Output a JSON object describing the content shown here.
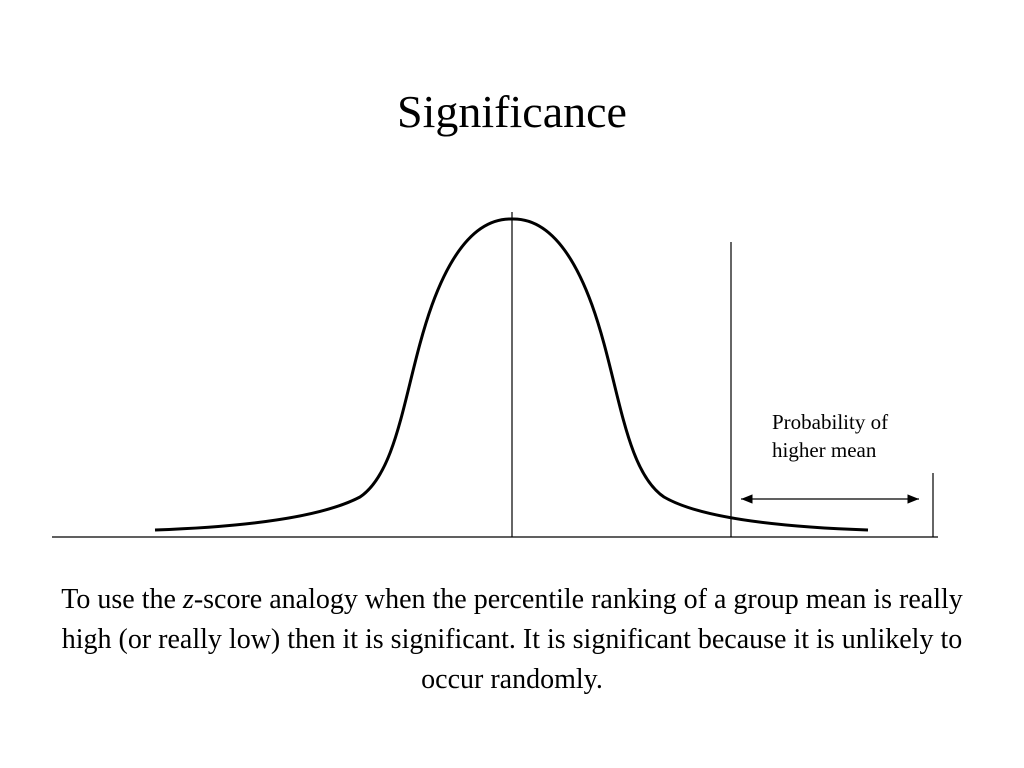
{
  "slide": {
    "title": "Significance"
  },
  "diagram": {
    "label_line_1": "Probability of",
    "label_line_2": "higher mean"
  },
  "caption": {
    "before_z": "To use the ",
    "z": "z",
    "after_z": "-score analogy when the percentile ranking of a group mean is really high (or really low) then it is significant. It is significant because it is unlikely to occur randomly."
  }
}
